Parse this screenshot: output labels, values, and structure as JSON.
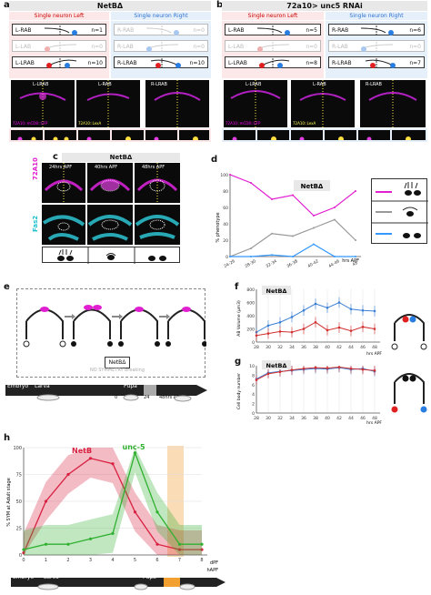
{
  "panel_a": {
    "letter": "a",
    "title": "NetBΔ",
    "sub_left": "Single neuron Left",
    "sub_right": "Single neuron Right",
    "rows_left": [
      {
        "label": "L-RAB",
        "n": "n=1"
      },
      {
        "label": "L-LAB",
        "n": "n=0"
      },
      {
        "label": "L-LRAB",
        "n": "n=10"
      }
    ],
    "rows_right": [
      {
        "label": "R-RAB",
        "n": "n=0"
      },
      {
        "label": "R-LAB",
        "n": "n=0"
      },
      {
        "label": "R-LRAB",
        "n": "n=10"
      }
    ],
    "img_labels": [
      "L-LRAB",
      "L-RAB",
      "R-LRAB"
    ],
    "img_tag": "72A10::mCD8::GFP",
    "img_tag2": "72A10::LexA"
  },
  "panel_b": {
    "letter": "b",
    "title": "72a10> unc5 RNAi",
    "sub_left": "Single neuron Left",
    "sub_right": "Single neuron Right",
    "rows_left": [
      {
        "label": "L-RAB",
        "n": "n=5"
      },
      {
        "label": "L-LAB",
        "n": "n=0"
      },
      {
        "label": "L-LRAB",
        "n": "n=8"
      }
    ],
    "rows_right": [
      {
        "label": "R-RAB",
        "n": "n=6"
      },
      {
        "label": "R-LAB",
        "n": "n=0"
      },
      {
        "label": "R-LRAB",
        "n": "n=7"
      }
    ],
    "img_labels": [
      "L-LRAB",
      "L-RAB",
      "R-LRAB"
    ]
  },
  "panel_c": {
    "letter": "c",
    "title": "NetBΔ",
    "times": [
      "24hrs APF",
      "40hrs APF",
      "48hrs APF"
    ],
    "stain1": "72A10",
    "stain2": "Fas2"
  },
  "panel_d": {
    "letter": "d",
    "title": "NetBΔ",
    "xlabel": "hrs APF"
  },
  "panel_e": {
    "letter": "e",
    "title": "NetBΔ",
    "note": "NO SYMMETRY breaking",
    "timeline": [
      "Embryo",
      "Larva",
      "Pupa"
    ],
    "ticks": [
      "0",
      "24",
      "48hrs APF"
    ]
  },
  "panel_f": {
    "letter": "f",
    "title": "NetBΔ",
    "ylabel": "AB Volume (µm3)",
    "xlabel": "hrs APF"
  },
  "panel_g": {
    "letter": "g",
    "title": "NetBΔ",
    "ylabel": "Cell body number",
    "xlabel": "hrs APF"
  },
  "panel_h": {
    "letter": "h",
    "series1": "NetB",
    "series2": "unc-5",
    "ylabel": "% SYM at Adult stage",
    "xlabel_top": "dPF",
    "xlabel_bottom": "hAPF",
    "timeline": [
      "Embryo",
      "Larva",
      "Pupa",
      "SYM. B"
    ]
  },
  "chart_data": [
    {
      "type": "line",
      "title": "NetBΔ",
      "xlabel": "hrs APF",
      "ylabel": "% phenotype",
      "categories": [
        "24-26",
        "28-30",
        "32-34",
        "36-38",
        "40-42",
        "44-46",
        "48"
      ],
      "ylim": [
        0,
        100
      ],
      "yticks": [
        0,
        20,
        40,
        60,
        80,
        100
      ],
      "series": [
        {
          "values": [
            100,
            90,
            70,
            75,
            50,
            60,
            80
          ],
          "color": "#e020d0"
        },
        {
          "values": [
            0,
            10,
            28,
            25,
            35,
            45,
            20
          ],
          "color": "#999999"
        },
        {
          "values": [
            0,
            0,
            2,
            0,
            15,
            0,
            0
          ],
          "color": "#3399ff"
        }
      ]
    },
    {
      "type": "line",
      "title": "NetBΔ",
      "xlabel": "hrs APF",
      "ylabel": "AB Volume (µm3)",
      "categories": [
        "28",
        "30",
        "32",
        "34",
        "36",
        "38",
        "40",
        "42",
        "44",
        "46",
        "48"
      ],
      "ylim": [
        0,
        800
      ],
      "yticks": [
        0,
        200,
        400,
        600,
        800
      ],
      "series": [
        {
          "values": [
            150,
            250,
            300,
            380,
            480,
            580,
            520,
            600,
            500,
            480,
            470
          ],
          "color": "#3a7fd5"
        },
        {
          "values": [
            100,
            130,
            160,
            150,
            200,
            300,
            180,
            220,
            170,
            230,
            200
          ],
          "color": "#d03030"
        }
      ]
    },
    {
      "type": "line",
      "title": "NetBΔ",
      "xlabel": "hrs APF",
      "ylabel": "Cell body number",
      "categories": [
        "28",
        "30",
        "32",
        "34",
        "36",
        "38",
        "40",
        "42",
        "44",
        "46",
        "48"
      ],
      "ylim": [
        0,
        10
      ],
      "yticks": [
        0,
        2,
        4,
        6,
        8,
        10
      ],
      "series": [
        {
          "values": [
            7.2,
            8.5,
            8.8,
            9,
            9.2,
            9.4,
            9.3,
            9.6,
            9.2,
            9.4,
            8.8
          ],
          "color": "#3a7fd5"
        },
        {
          "values": [
            7,
            8.3,
            8.7,
            9.1,
            9.4,
            9.6,
            9.5,
            9.7,
            9.4,
            9.2,
            9.0
          ],
          "color": "#d03030"
        }
      ]
    },
    {
      "type": "line",
      "xlabel": "dPF",
      "ylabel": "% SYM at Adult stage",
      "categories": [
        "0",
        "1",
        "2",
        "3",
        "4",
        "5",
        "6",
        "7",
        "8"
      ],
      "ylim": [
        0,
        100
      ],
      "yticks": [
        0,
        25,
        50,
        75,
        100
      ],
      "series": [
        {
          "name": "NetB",
          "values": [
            2,
            50,
            75,
            90,
            85,
            40,
            10,
            5,
            5
          ],
          "color": "#d82040"
        },
        {
          "name": "unc-5",
          "values": [
            5,
            10,
            10,
            15,
            20,
            95,
            40,
            10,
            10
          ],
          "color": "#30b030"
        }
      ]
    }
  ]
}
